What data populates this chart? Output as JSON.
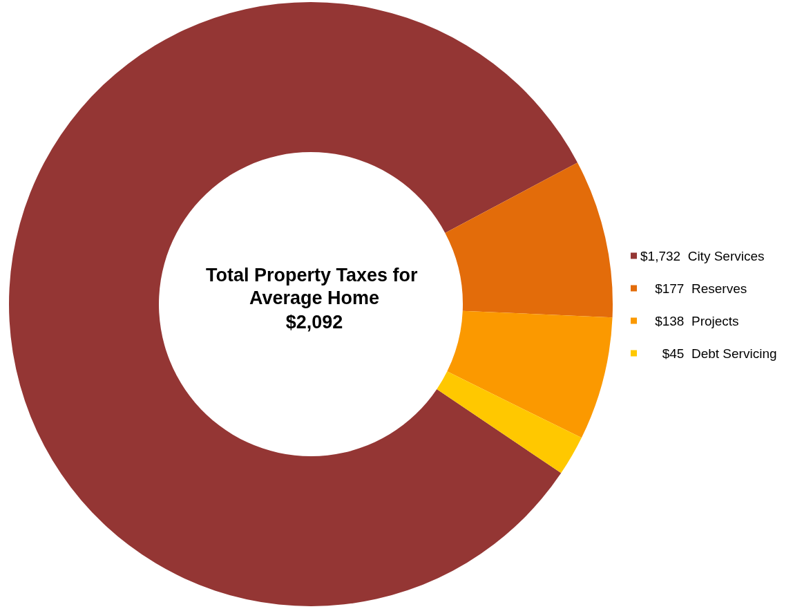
{
  "chart_data": {
    "type": "donut",
    "title": "Total Property Taxes for Average Home",
    "subtitle": "$2,092",
    "categories": [
      "City Services",
      "Reserves",
      "Projects",
      "Debt Servicing"
    ],
    "values": [
      1732,
      177,
      138,
      45
    ],
    "value_labels": [
      "$1,732",
      "$177",
      "$138",
      "$45"
    ],
    "colors": [
      "#943634",
      "#e36c0a",
      "#fb9900",
      "#ffc800"
    ],
    "legend": "right"
  }
}
